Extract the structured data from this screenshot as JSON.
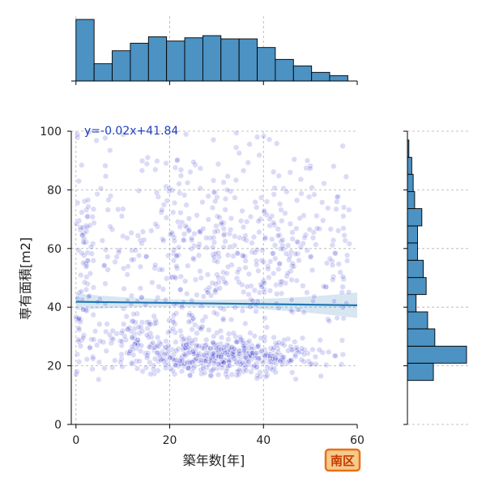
{
  "chart_data": {
    "type": "scatter",
    "subtype": "jointplot",
    "xlabel": "築年数[年]",
    "ylabel": "専有面積[m2]",
    "xlim": [
      -1,
      60
    ],
    "ylim": [
      0,
      100
    ],
    "xticks": [
      0,
      20,
      40,
      60
    ],
    "yticks": [
      0,
      20,
      40,
      60,
      80,
      100
    ],
    "grid": true,
    "annotation": "y=-0.02x+41.84",
    "region_label": "南区",
    "regression": {
      "slope": -0.02,
      "intercept": 41.84,
      "color": "#1f77b4"
    },
    "point_color": "#2222cc",
    "hist_color": "#4c92c3",
    "badge_fill": "#f7c98a",
    "badge_border": "#e8701a",
    "x_hist": {
      "bin_edges": [
        0,
        3.87,
        7.73,
        11.6,
        15.47,
        19.33,
        23.2,
        27.07,
        30.93,
        34.8,
        38.67,
        42.53,
        46.4,
        50.27,
        54.13,
        58.0
      ],
      "counts": [
        57,
        16,
        28,
        35,
        41,
        37,
        40,
        42,
        39,
        39,
        31,
        20,
        14,
        8,
        5
      ]
    },
    "y_hist": {
      "bin_edges": [
        15,
        20.9,
        26.7,
        32.6,
        38.4,
        44.3,
        50.1,
        56.0,
        61.9,
        67.7,
        73.6,
        79.4,
        85.3,
        91.1,
        97.0,
        100
      ],
      "counts": [
        18,
        41,
        19,
        14,
        6,
        13,
        11,
        7,
        7,
        10,
        5,
        4,
        3,
        1,
        0
      ]
    },
    "point_clusters": [
      {
        "cx": 32,
        "cy": 23,
        "sx": 10,
        "sy": 3,
        "n": 420
      },
      {
        "cx": 15,
        "cy": 30,
        "sx": 8,
        "sy": 5,
        "n": 130
      },
      {
        "cx": 30,
        "cy": 60,
        "sx": 16,
        "sy": 18,
        "n": 560
      },
      {
        "cx": 2,
        "cy": 55,
        "sx": 1.5,
        "sy": 20,
        "n": 55
      }
    ]
  }
}
